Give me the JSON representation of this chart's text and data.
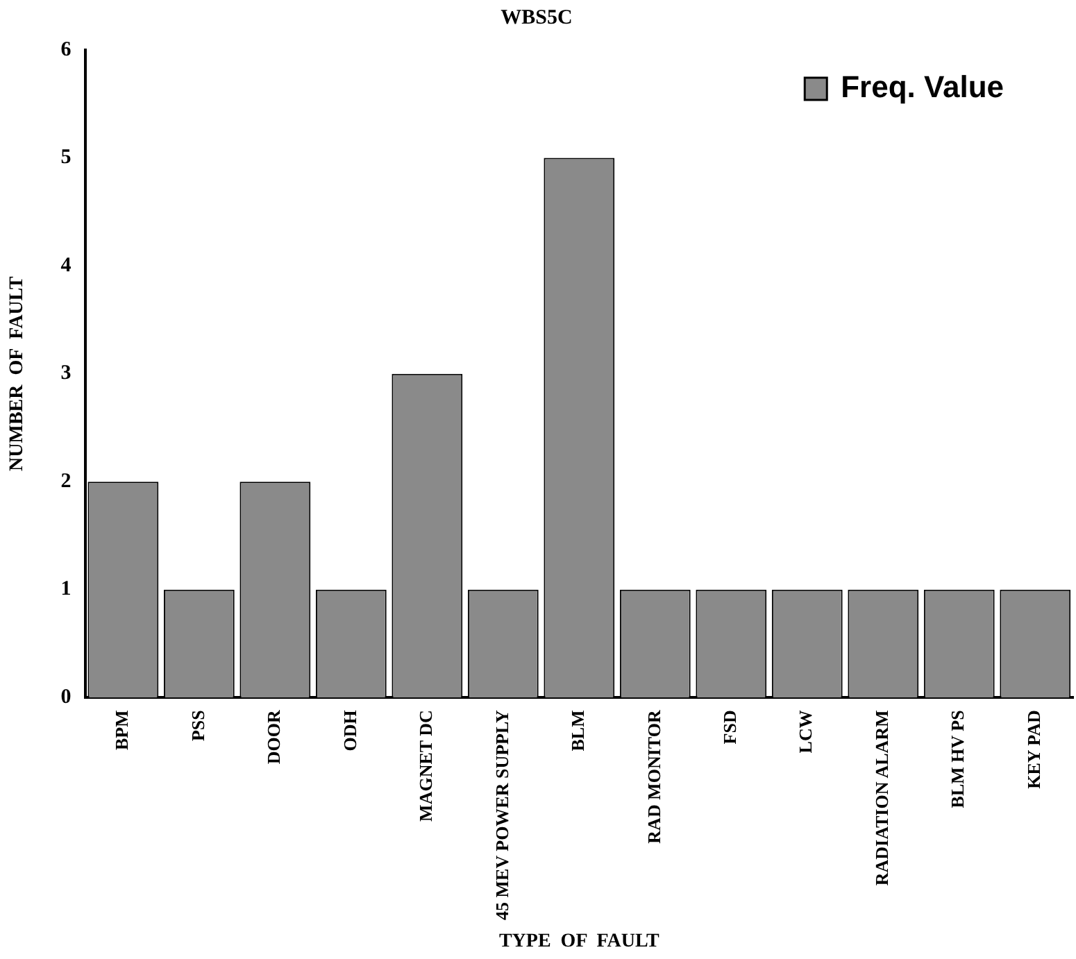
{
  "chart_data": {
    "type": "bar",
    "title": "WBS5C",
    "xlabel": "TYPE  OF  FAULT",
    "ylabel": "NUMBER  OF  FAULT",
    "categories": [
      "BPM",
      "PSS",
      "DOOR",
      "ODH",
      "MAGNET DC",
      "45 MEV POWER SUPPLY",
      "BLM",
      "RAD MONITOR",
      "FSD",
      "LCW",
      "RADIATION ALARM",
      "BLM HV PS",
      "KEY PAD"
    ],
    "series": [
      {
        "name": "Freq. Value",
        "color": "#8a8a8a",
        "values": [
          2,
          1,
          2,
          1,
          3,
          1,
          5,
          1,
          1,
          1,
          1,
          1,
          1
        ]
      }
    ],
    "ylim": [
      0,
      6
    ],
    "yticks": [
      0,
      1,
      2,
      3,
      4,
      5,
      6
    ],
    "grid": false,
    "legend": "top right"
  }
}
